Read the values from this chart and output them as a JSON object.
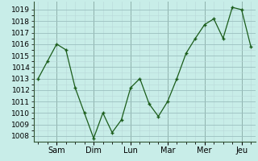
{
  "background_color": "#c8ede8",
  "grid_color_major": "#9bbfbf",
  "grid_color_minor": "#b8d8d8",
  "line_color": "#1a5c1a",
  "ylim": [
    1007.5,
    1019.7
  ],
  "yticks": [
    1008,
    1009,
    1010,
    1011,
    1012,
    1013,
    1014,
    1015,
    1016,
    1017,
    1018,
    1019
  ],
  "day_labels": [
    "Sam",
    "Dim",
    "Lun",
    "Mar",
    "Mer",
    "Jeu"
  ],
  "x_values": [
    0,
    1,
    2,
    3,
    4,
    5,
    6,
    7,
    8,
    9,
    10,
    11,
    12,
    13,
    14,
    15,
    16,
    17,
    18,
    19,
    20,
    21,
    22,
    23
  ],
  "y_values": [
    1013.0,
    1014.5,
    1016.0,
    1015.5,
    1012.2,
    1010.0,
    1007.8,
    1010.0,
    1008.3,
    1009.4,
    1012.2,
    1013.0,
    1010.8,
    1009.7,
    1011.0,
    1013.0,
    1015.2,
    1016.5,
    1017.7,
    1018.2,
    1016.5,
    1019.2,
    1019.0,
    1015.8
  ],
  "day_tick_positions": [
    2,
    6,
    10,
    14,
    18,
    22
  ],
  "day_vline_positions": [
    2,
    6,
    10,
    14,
    18,
    22
  ],
  "tick_fontsize": 6.5,
  "xlabel_fontsize": 7
}
